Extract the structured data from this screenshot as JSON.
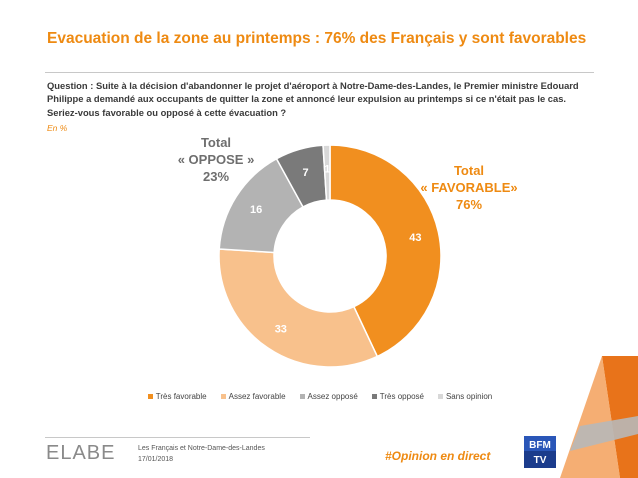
{
  "header": {
    "title": "Evacuation de la zone au printemps : 76% des Français y sont favorables",
    "question": "Question : Suite à la décision d'abandonner le projet d'aéroport à Notre-Dame-des-Landes, le Premier ministre Edouard Philippe a demandé aux occupants de quitter la zone et annoncé leur expulsion au printemps si ce n'était pas le cas.",
    "question2": "Seriez-vous favorable ou opposé à cette évacuation ?",
    "unit": "En  %"
  },
  "totals": {
    "oppose": {
      "line1": "Total",
      "line2": "« OPPOSE »",
      "line3": "23%"
    },
    "favorable": {
      "line1": "Total",
      "line2": "« FAVORABLE»",
      "line3": "76%"
    }
  },
  "chart_data": {
    "type": "pie",
    "donut": true,
    "categories": [
      "Très favorable",
      "Assez favorable",
      "Assez opposé",
      "Très opposé",
      "Sans opinion"
    ],
    "values": [
      43,
      33,
      16,
      7,
      1
    ],
    "colors": [
      "#f18f1f",
      "#f8c18c",
      "#b3b3b3",
      "#7a7a7a",
      "#d8d8d8"
    ],
    "label_colors": [
      "#ffffff",
      "#ffffff",
      "#ffffff",
      "#ffffff",
      "#ffffff"
    ],
    "legend_position": "bottom"
  },
  "footer": {
    "logo": "ELABE",
    "line1": "Les Français et Notre-Dame-des-Landes",
    "line2": "17/01/2018",
    "hashtag": "#Opinion en direct",
    "brand_logo": "BFM TV"
  }
}
